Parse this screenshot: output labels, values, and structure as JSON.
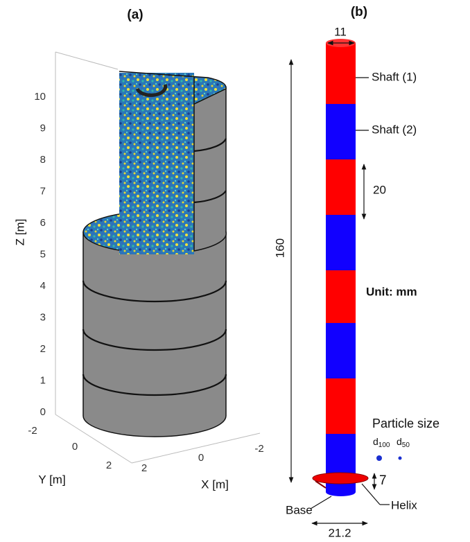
{
  "panel_a": {
    "label": "(a)",
    "z_axis_label": "Z [m]",
    "z_ticks": [
      "0",
      "1",
      "2",
      "3",
      "4",
      "5",
      "6",
      "7",
      "8",
      "9",
      "10"
    ],
    "y_axis_label": "Y [m]",
    "y_ticks": [
      "-2",
      "0",
      "2"
    ],
    "x_axis_label": "X [m]",
    "x_ticks": [
      "2",
      "0",
      "-2"
    ]
  },
  "panel_b": {
    "label": "(b)",
    "shaft_diameter": "11",
    "shaft_1": "Shaft (1)",
    "shaft_2": "Shaft (2)",
    "segment_length": "20",
    "total_length": "160",
    "unit": "Unit: mm",
    "particle_size": "Particle size",
    "d100": {
      "base": "d",
      "sub": "100"
    },
    "d50": {
      "base": "d",
      "sub": "50"
    },
    "helix_pitch": "7",
    "base": "Base",
    "helix": "Helix",
    "helix_diameter": "21.2"
  }
}
